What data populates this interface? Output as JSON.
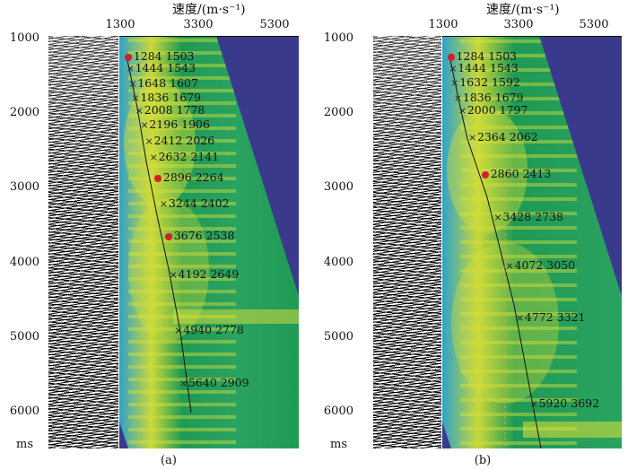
{
  "axis": {
    "velocity_title": "速度/(m·s⁻¹)",
    "velocity_ticks": [
      "1300",
      "3300",
      "5300"
    ],
    "time_ticks": [
      "1000",
      "2000",
      "3000",
      "4000",
      "5000",
      "6000"
    ],
    "time_unit": "ms"
  },
  "panels": [
    {
      "caption": "(a)",
      "picks": [
        {
          "t": "1284",
          "v": "1503"
        },
        {
          "t": "1444",
          "v": "1543"
        },
        {
          "t": "1648",
          "v": "1607"
        },
        {
          "t": "1836",
          "v": "1679"
        },
        {
          "t": "2008",
          "v": "1778"
        },
        {
          "t": "2196",
          "v": "1906"
        },
        {
          "t": "2412",
          "v": "2026"
        },
        {
          "t": "2632",
          "v": "2141"
        },
        {
          "t": "2896",
          "v": "2264"
        },
        {
          "t": "3244",
          "v": "2402"
        },
        {
          "t": "3676",
          "v": "2538"
        },
        {
          "t": "4192",
          "v": "2649"
        },
        {
          "t": "4940",
          "v": "2778"
        },
        {
          "t": "5640",
          "v": "2909"
        }
      ]
    },
    {
      "caption": "(b)",
      "picks": [
        {
          "t": "1284",
          "v": "1503"
        },
        {
          "t": "1444",
          "v": "1543"
        },
        {
          "t": "1632",
          "v": "1592"
        },
        {
          "t": "1836",
          "v": "1679"
        },
        {
          "t": "2000",
          "v": "1797"
        },
        {
          "t": "2364",
          "v": "2062"
        },
        {
          "t": "2860",
          "v": "2413"
        },
        {
          "t": "3428",
          "v": "2738"
        },
        {
          "t": "4072",
          "v": "3050"
        },
        {
          "t": "4772",
          "v": "3321"
        },
        {
          "t": "5920",
          "v": "3692"
        }
      ]
    }
  ],
  "colors": {
    "background_blue": "#3a3a8c",
    "semblance_low": "#1f9a55",
    "semblance_mid": "#c8d83a",
    "semblance_high": "#e85a2a",
    "semblance_cool": "#2fa3c8",
    "pick_dot": "#d21f2c"
  }
}
